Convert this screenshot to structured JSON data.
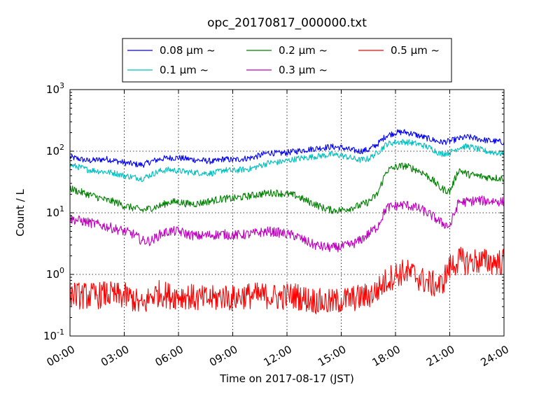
{
  "chart_data": {
    "type": "line",
    "title": "opc_20170817_000000.txt",
    "xlabel": "Time on 2017-08-17 (JST)",
    "ylabel": "Count / L",
    "yscale": "log",
    "ylim": [
      0.1,
      1000
    ],
    "xlim": [
      "00:00",
      "24:00"
    ],
    "grid": true,
    "legend_position": "top-center",
    "xticks": [
      "00:00",
      "03:00",
      "06:00",
      "09:00",
      "12:00",
      "15:00",
      "18:00",
      "21:00",
      "24:00"
    ],
    "yticks": [
      {
        "value": 0.1,
        "base": "10",
        "exp": "-1"
      },
      {
        "value": 1,
        "base": "10",
        "exp": "0"
      },
      {
        "value": 10,
        "base": "10",
        "exp": "1"
      },
      {
        "value": 100,
        "base": "10",
        "exp": "2"
      },
      {
        "value": 1000,
        "base": "10",
        "exp": "3"
      }
    ],
    "x": [
      "00:00",
      "00:30",
      "01:00",
      "01:30",
      "02:00",
      "02:30",
      "03:00",
      "03:30",
      "04:00",
      "04:30",
      "05:00",
      "05:30",
      "06:00",
      "06:30",
      "07:00",
      "07:30",
      "08:00",
      "08:30",
      "09:00",
      "09:30",
      "10:00",
      "10:30",
      "11:00",
      "11:30",
      "12:00",
      "12:30",
      "13:00",
      "13:30",
      "14:00",
      "14:30",
      "15:00",
      "15:30",
      "16:00",
      "16:30",
      "17:00",
      "17:30",
      "18:00",
      "18:30",
      "19:00",
      "19:30",
      "20:00",
      "20:30",
      "21:00",
      "21:30",
      "22:00",
      "22:30",
      "23:00",
      "23:30",
      "24:00"
    ],
    "series": [
      {
        "name": "0.08 μm ~",
        "color": "#0000ff",
        "values": [
          80,
          75,
          70,
          72,
          75,
          70,
          65,
          62,
          60,
          68,
          75,
          78,
          78,
          75,
          72,
          70,
          68,
          75,
          72,
          75,
          78,
          85,
          95,
          92,
          95,
          100,
          105,
          110,
          115,
          118,
          115,
          105,
          100,
          105,
          130,
          180,
          200,
          205,
          190,
          170,
          155,
          140,
          145,
          160,
          170,
          160,
          150,
          145,
          140
        ]
      },
      {
        "name": "0.1 μm ~",
        "color": "#00bfbf",
        "values": [
          60,
          55,
          50,
          48,
          46,
          44,
          40,
          38,
          36,
          42,
          48,
          50,
          48,
          46,
          45,
          44,
          44,
          50,
          48,
          50,
          52,
          58,
          65,
          66,
          70,
          75,
          78,
          82,
          85,
          88,
          85,
          78,
          72,
          75,
          95,
          130,
          140,
          142,
          135,
          125,
          110,
          90,
          95,
          115,
          120,
          110,
          100,
          95,
          90
        ]
      },
      {
        "name": "0.2 μm ~",
        "color": "#008000",
        "values": [
          25,
          22,
          20,
          18,
          16,
          15,
          13,
          12,
          11,
          12,
          13,
          15,
          15,
          14,
          14,
          15,
          16,
          17,
          17,
          18,
          19,
          20,
          21,
          21,
          20,
          19,
          16,
          14,
          12,
          11,
          11,
          12,
          13,
          15,
          20,
          48,
          55,
          58,
          52,
          45,
          35,
          25,
          22,
          50,
          42,
          40,
          38,
          37,
          36
        ]
      },
      {
        "name": "0.3 μm ~",
        "color": "#bf00bf",
        "values": [
          8,
          7.5,
          7,
          6.5,
          6,
          5.5,
          5,
          4.5,
          3.5,
          3.5,
          4.5,
          5,
          5,
          4.5,
          4.2,
          4.3,
          4.4,
          4.5,
          4.3,
          4.4,
          4.5,
          4.8,
          5,
          4.8,
          4.5,
          4.2,
          3.5,
          3,
          2.8,
          2.7,
          2.8,
          3,
          3.5,
          4.5,
          6,
          12,
          13,
          13.5,
          12.5,
          11,
          9,
          7,
          6,
          15,
          15,
          16,
          15.5,
          15.5,
          15
        ]
      },
      {
        "name": "0.5 μm ~",
        "color": "#ff0000",
        "values": [
          0.5,
          0.45,
          0.45,
          0.45,
          0.48,
          0.45,
          0.45,
          0.4,
          0.3,
          0.45,
          0.5,
          0.45,
          0.45,
          0.45,
          0.4,
          0.4,
          0.4,
          0.45,
          0.4,
          0.45,
          0.45,
          0.45,
          0.45,
          0.42,
          0.45,
          0.45,
          0.4,
          0.38,
          0.35,
          0.35,
          0.38,
          0.4,
          0.42,
          0.45,
          0.55,
          0.8,
          1.0,
          1.1,
          1.0,
          0.8,
          0.7,
          0.65,
          1.3,
          1.7,
          1.6,
          1.65,
          1.6,
          1.6,
          1.6
        ]
      }
    ]
  }
}
